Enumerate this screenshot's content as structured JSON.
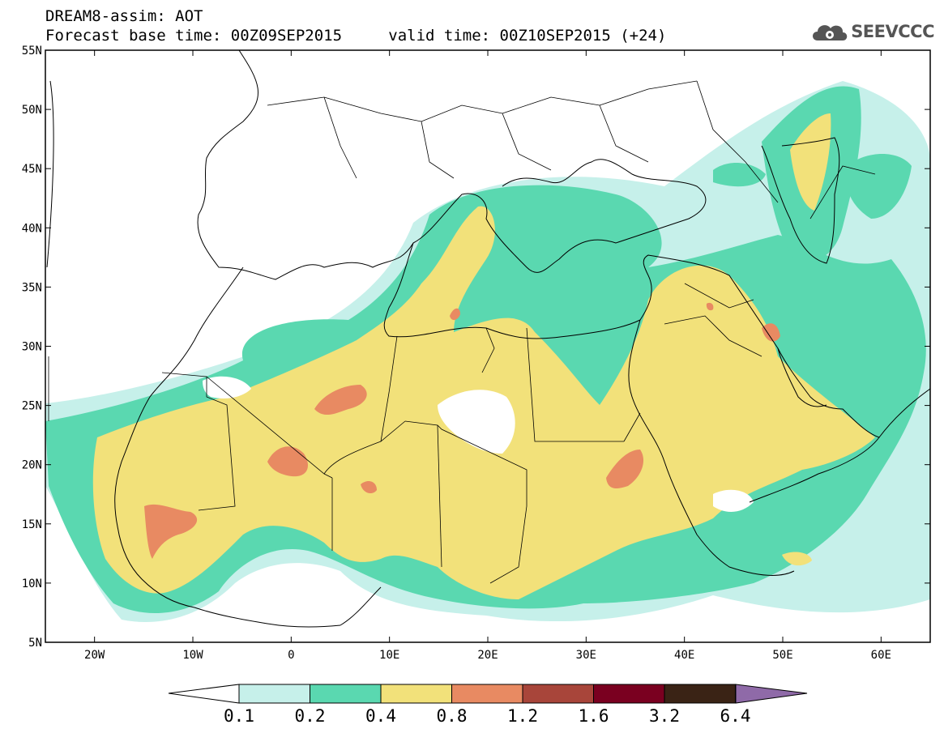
{
  "header": {
    "title": "DREAM8-assim: AOT",
    "base_time_label": "Forecast base time: 00Z09SEP2015",
    "valid_time_label": "valid time: 00Z10SEP2015 (+24)"
  },
  "logo": {
    "text": "SEEVCCC",
    "icon": "cloud-gear-icon"
  },
  "map": {
    "projection": "lat-lon",
    "lon_range": [
      -25,
      65
    ],
    "lat_range": [
      5,
      55
    ],
    "lon_ticks": [
      "20W",
      "10W",
      "0",
      "10E",
      "20E",
      "30E",
      "40E",
      "50E",
      "60E"
    ],
    "lat_ticks": [
      "5N",
      "10N",
      "15N",
      "20N",
      "25N",
      "30N",
      "35N",
      "40N",
      "45N",
      "50N",
      "55N"
    ],
    "field": "Aerosol optical thickness (AOT)"
  },
  "colorbar": {
    "levels": [
      "0.1",
      "0.2",
      "0.4",
      "0.8",
      "1.2",
      "1.6",
      "3.2",
      "6.4"
    ],
    "colors": [
      "#c6f0ea",
      "#5ad8b0",
      "#f2e17a",
      "#e88a62",
      "#a8453a",
      "#7a0020",
      "#3a2315",
      "#8f6aa8"
    ]
  }
}
